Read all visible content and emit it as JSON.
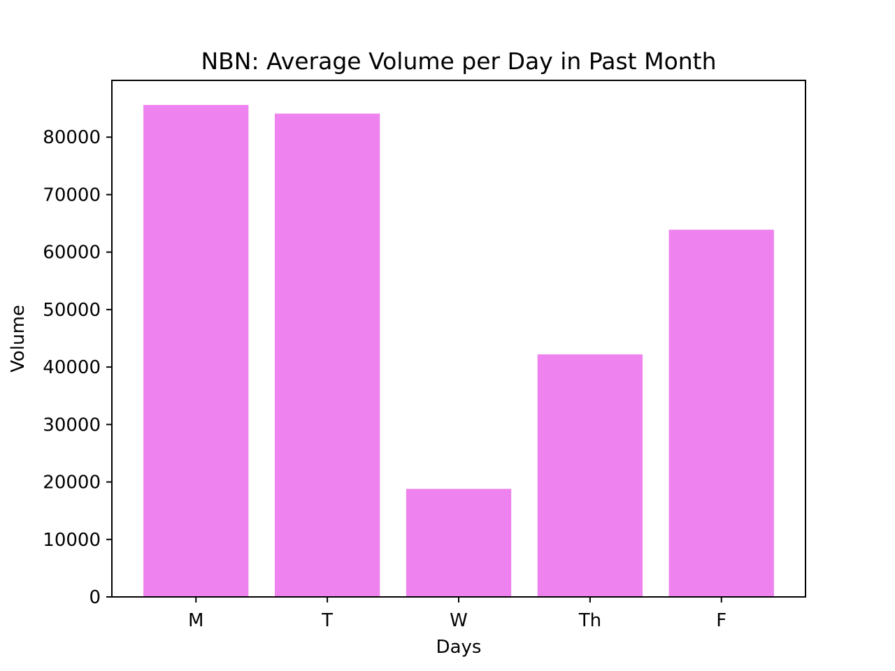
{
  "chart_data": {
    "type": "bar",
    "title": "NBN: Average Volume per Day in Past Month",
    "xlabel": "Days",
    "ylabel": "Volume",
    "categories": [
      "M",
      "T",
      "W",
      "Th",
      "F"
    ],
    "values": [
      85600,
      84100,
      18800,
      42200,
      63900
    ],
    "ylim": [
      0,
      89880
    ],
    "yticks": [
      0,
      10000,
      20000,
      30000,
      40000,
      50000,
      60000,
      70000,
      80000
    ],
    "grid": false,
    "legend": "none",
    "bar_color": "#ee82ee"
  }
}
